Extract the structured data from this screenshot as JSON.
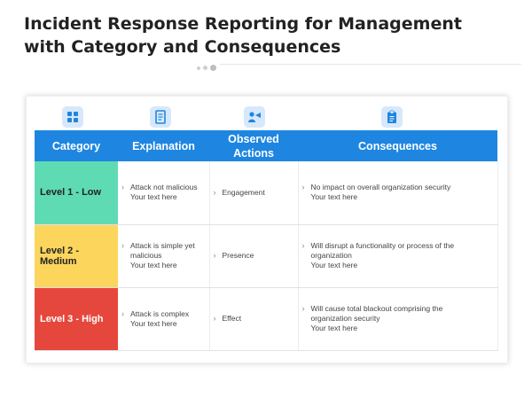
{
  "header": {
    "title_line1": "Incident Response Reporting for Management",
    "title_line2": "with Category and Consequences"
  },
  "icons": [
    "grid-icon",
    "document-icon",
    "person-icon",
    "clipboard-icon"
  ],
  "colors": {
    "header_bg": "#1e86e0",
    "icon_bg": "#d7e8fb",
    "icon_fg": "#1e86e0",
    "level_low": "#5fdbb4",
    "level_medium": "#fcd55c",
    "level_high": "#e6473c"
  },
  "table": {
    "headers": {
      "category": "Category",
      "explanation": "Explanation",
      "observed_1": "Observed",
      "observed_2": "Actions",
      "consequences": "Consequences"
    },
    "rows": [
      {
        "level": "Level 1 - Low",
        "explanation": [
          "Attack not malicious",
          "Your text here"
        ],
        "observed": "Engagement",
        "consequence": [
          "No impact on overall organization security",
          "Your text here"
        ]
      },
      {
        "level": "Level 2 - Medium",
        "explanation": [
          "Attack is simple yet",
          "malicious",
          "Your text here"
        ],
        "observed": "Presence",
        "consequence": [
          "Will disrupt a functionality or process of the",
          "organization",
          "Your text here"
        ]
      },
      {
        "level": "Level 3 - High",
        "explanation": [
          "Attack is complex",
          "Your text here"
        ],
        "observed": "Effect",
        "consequence": [
          "Will cause total blackout comprising the",
          "organization security",
          "Your text here"
        ]
      }
    ]
  }
}
